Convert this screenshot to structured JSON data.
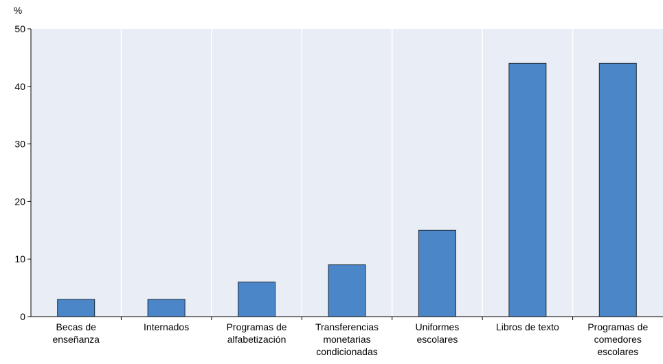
{
  "chart_data": {
    "type": "bar",
    "y_label": "%",
    "categories": [
      "Becas de\nenseñanza",
      "Internados",
      "Programas de\nalfabetización",
      "Transferencias\nmonetarias\ncondicionadas",
      "Uniformes\nescolares",
      "Libros de texto",
      "Programas de\ncomedores\nescolares"
    ],
    "values": [
      3,
      3,
      6,
      9,
      15,
      44,
      44
    ],
    "color": "#4a86c8",
    "ylim": [
      0,
      50
    ],
    "yticks": [
      0,
      10,
      20,
      30,
      40,
      50
    ],
    "grid": true
  }
}
